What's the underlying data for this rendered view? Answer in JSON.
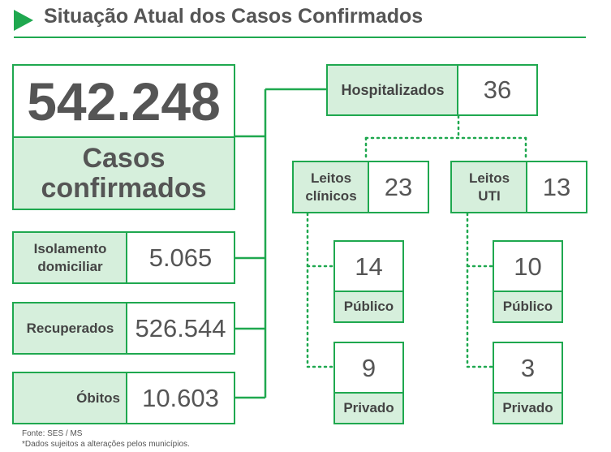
{
  "header": {
    "title": "Situação Atual dos Casos Confirmados"
  },
  "total": {
    "value": "542.248",
    "label_line1": "Casos",
    "label_line2": "confirmados"
  },
  "outcomes": [
    {
      "label_line1": "Isolamento",
      "label_line2": "domiciliar",
      "value": "5.065"
    },
    {
      "label_line1": "Recuperados",
      "label_line2": "",
      "value": "526.544"
    },
    {
      "label_line1": "Óbitos",
      "label_line2": "",
      "value": "10.603"
    }
  ],
  "hospitalized": {
    "label": "Hospitalizados",
    "value": "36"
  },
  "beds": [
    {
      "label_line1": "Leitos",
      "label_line2": "clínicos",
      "value": "23",
      "public": {
        "value": "14",
        "label": "Público"
      },
      "private": {
        "value": "9",
        "label": "Privado"
      }
    },
    {
      "label_line1": "Leitos",
      "label_line2": "UTI",
      "value": "13",
      "public": {
        "value": "10",
        "label": "Público"
      },
      "private": {
        "value": "3",
        "label": "Privado"
      }
    }
  ],
  "footnotes": {
    "source": "Fonte: SES / MS",
    "note": "*Dados sujeitos a alterações pelos municípios."
  },
  "colors": {
    "accent": "#1fa84f",
    "fill": "#d6efdc",
    "text": "#555555"
  }
}
